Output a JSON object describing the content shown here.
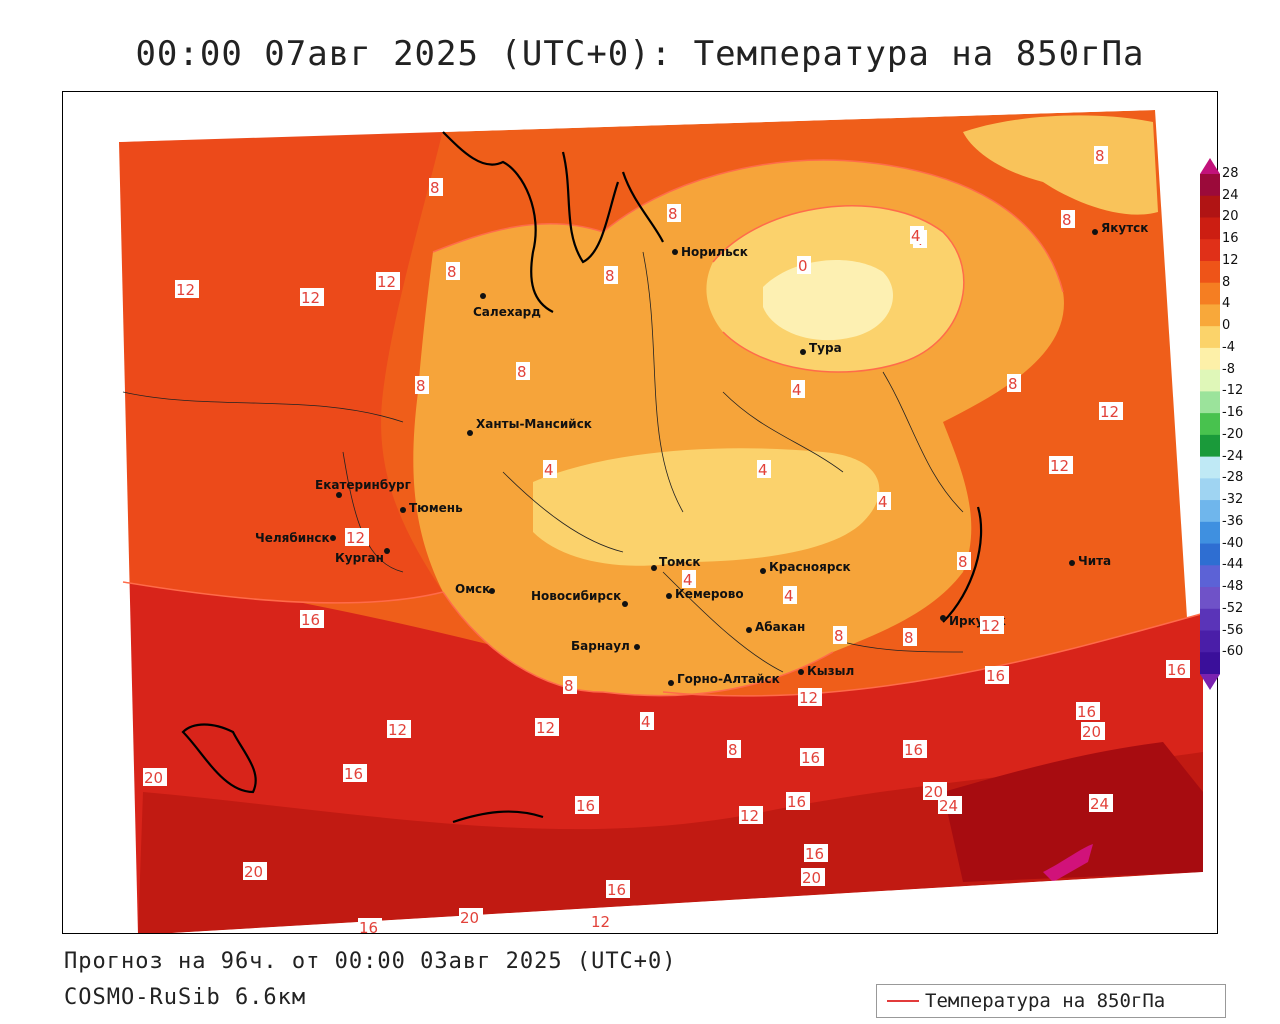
{
  "title": "00:00 07авг 2025 (UTC+0): Температура на 850гПа",
  "footer": {
    "forecast": "Прогноз на 96ч. от 00:00 03авг 2025 (UTC+0)",
    "model": "COSMO-RuSib 6.6км"
  },
  "legend": {
    "label": "Температура на 850гПа",
    "line_color": "#e23b3b"
  },
  "colorbar": {
    "labels": [
      "28",
      "24",
      "20",
      "16",
      "12",
      "8",
      "4",
      "0",
      "-4",
      "-8",
      "-12",
      "-16",
      "-20",
      "-24",
      "-28",
      "-32",
      "-36",
      "-40",
      "-44",
      "-48",
      "-52",
      "-56",
      "-60"
    ],
    "colors": [
      "#9b0a3a",
      "#b01414",
      "#cc1e12",
      "#e03018",
      "#ee5418",
      "#f57e22",
      "#f8a83a",
      "#fbd36a",
      "#fdf0a8",
      "#dff7b8",
      "#9be39b",
      "#48c24e",
      "#1a9a3a",
      "#bfe9f5",
      "#9fd4f2",
      "#6fb6ec",
      "#3f90e0",
      "#2e6ed2",
      "#5c62d6",
      "#6f52c8",
      "#5a34b8",
      "#4a1ea8",
      "#3a0f9a"
    ]
  },
  "cities": [
    {
      "name": "Норильск"
    },
    {
      "name": "Якутск"
    },
    {
      "name": "Салехард"
    },
    {
      "name": "Тура"
    },
    {
      "name": "Ханты-Мансийск"
    },
    {
      "name": "Екатеринбург"
    },
    {
      "name": "Тюмень"
    },
    {
      "name": "Челябинск"
    },
    {
      "name": "Курган"
    },
    {
      "name": "Томск"
    },
    {
      "name": "Красноярск"
    },
    {
      "name": "Омск"
    },
    {
      "name": "Новосибирск"
    },
    {
      "name": "Кемерово"
    },
    {
      "name": "Абакан"
    },
    {
      "name": "Барнаул"
    },
    {
      "name": "Иркутск"
    },
    {
      "name": "Чита"
    },
    {
      "name": "Горно-Алтайск"
    },
    {
      "name": "Кызыл"
    }
  ],
  "isolines": [
    "8",
    "4",
    "8",
    "8",
    "12",
    "12",
    "12",
    "8",
    "8",
    "8",
    "4",
    "0",
    "4",
    "4",
    "8",
    "8",
    "4",
    "4",
    "4",
    "8",
    "12",
    "12",
    "12",
    "4",
    "4",
    "4",
    "8",
    "8",
    "8",
    "12",
    "16",
    "16",
    "16",
    "12",
    "12",
    "20",
    "16",
    "16",
    "12",
    "16",
    "16",
    "16",
    "12",
    "16",
    "20",
    "20",
    "24",
    "24",
    "20",
    "16",
    "20",
    "16",
    "16",
    "12",
    "20",
    "8",
    "8",
    "12",
    "4"
  ]
}
